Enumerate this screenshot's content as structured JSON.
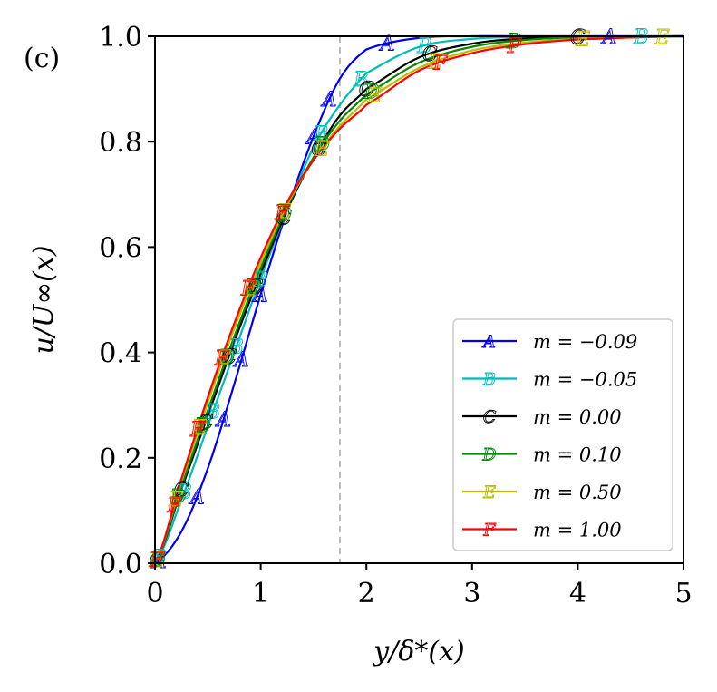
{
  "panel_label": "(c)",
  "chart_data": {
    "type": "line",
    "title": "",
    "xlabel": "y/δ*(x)",
    "ylabel": "u/U∞(x)",
    "xlim": [
      0,
      5
    ],
    "ylim": [
      0,
      1
    ],
    "xticks": [
      0,
      1,
      2,
      3,
      4,
      5
    ],
    "yticks": [
      0.0,
      0.2,
      0.4,
      0.6,
      0.8,
      1.0
    ],
    "xtick_labels": [
      "0",
      "1",
      "2",
      "3",
      "4",
      "5"
    ],
    "ytick_labels": [
      "0.0",
      "0.2",
      "0.4",
      "0.6",
      "0.8",
      "1.0"
    ],
    "grid": false,
    "legend_position": "lower-right",
    "reference_line": {
      "orientation": "vertical",
      "x": 1.75,
      "style": "dashed",
      "color": "#bbbbbb"
    },
    "series": [
      {
        "name": "m = −0.09",
        "marker": "A",
        "color": "#0000ee",
        "x": [
          0,
          0.25,
          0.5,
          0.75,
          1.0,
          1.25,
          1.5,
          1.75,
          2.0,
          2.5,
          3.0,
          3.5,
          4.0,
          5.0
        ],
        "y": [
          0,
          0.06,
          0.18,
          0.34,
          0.51,
          0.67,
          0.81,
          0.92,
          0.975,
          0.997,
          1.0,
          1.0,
          1.0,
          1.0
        ],
        "marker_x": [
          0.04,
          0.4,
          0.65,
          0.82,
          1.0,
          1.5,
          1.65,
          2.2,
          4.3
        ]
      },
      {
        "name": "m = −0.05",
        "marker": "B",
        "color": "#00bbbb",
        "x": [
          0,
          0.25,
          0.5,
          0.75,
          1.0,
          1.25,
          1.5,
          1.75,
          2.0,
          2.5,
          3.0,
          3.5,
          4.0,
          5.0
        ],
        "y": [
          0,
          0.12,
          0.26,
          0.4,
          0.54,
          0.67,
          0.79,
          0.87,
          0.93,
          0.98,
          0.995,
          0.999,
          1.0,
          1.0
        ],
        "marker_x": [
          0.04,
          0.28,
          0.55,
          0.77,
          1.0,
          1.57,
          1.95,
          2.55,
          4.6
        ]
      },
      {
        "name": "m = 0.00",
        "marker": "C",
        "color": "#000000",
        "x": [
          0,
          0.25,
          0.5,
          0.75,
          1.0,
          1.25,
          1.5,
          1.75,
          2.0,
          2.5,
          3.0,
          3.5,
          4.0,
          5.0
        ],
        "y": [
          0,
          0.14,
          0.28,
          0.42,
          0.55,
          0.67,
          0.77,
          0.85,
          0.9,
          0.96,
          0.986,
          0.996,
          0.999,
          1.0
        ],
        "marker_x": [
          0.02,
          0.25,
          0.48,
          0.7,
          0.95,
          1.22,
          1.55,
          2.0,
          2.6,
          4.0
        ]
      },
      {
        "name": "m = 0.10",
        "marker": "D",
        "color": "#008800",
        "x": [
          0,
          0.25,
          0.5,
          0.75,
          1.0,
          1.25,
          1.5,
          1.75,
          2.0,
          2.5,
          3.0,
          3.5,
          4.0,
          5.0
        ],
        "y": [
          0,
          0.145,
          0.29,
          0.43,
          0.56,
          0.675,
          0.77,
          0.84,
          0.89,
          0.95,
          0.98,
          0.993,
          0.998,
          1.0
        ],
        "marker_x": [
          0.02,
          0.22,
          0.45,
          0.68,
          0.93,
          1.22,
          1.58,
          2.05,
          3.4
        ]
      },
      {
        "name": "m = 0.50",
        "marker": "E",
        "color": "#bbbb00",
        "x": [
          0,
          0.25,
          0.5,
          0.75,
          1.0,
          1.25,
          1.5,
          1.75,
          2.0,
          2.5,
          3.0,
          3.5,
          4.0,
          5.0
        ],
        "y": [
          0,
          0.155,
          0.305,
          0.445,
          0.57,
          0.68,
          0.765,
          0.83,
          0.88,
          0.94,
          0.973,
          0.988,
          0.995,
          1.0
        ],
        "marker_x": [
          0.02,
          0.2,
          0.42,
          0.65,
          0.9,
          1.22,
          1.58,
          2.08,
          2.65,
          4.05,
          4.8
        ]
      },
      {
        "name": "m = 1.00",
        "marker": "F",
        "color": "#ff0000",
        "x": [
          0,
          0.25,
          0.5,
          0.75,
          1.0,
          1.25,
          1.5,
          1.75,
          2.0,
          2.5,
          3.0,
          3.5,
          4.0,
          5.0
        ],
        "y": [
          0,
          0.16,
          0.315,
          0.455,
          0.58,
          0.685,
          0.765,
          0.825,
          0.87,
          0.935,
          0.968,
          0.985,
          0.994,
          1.0
        ],
        "marker_x": [
          0.02,
          0.18,
          0.4,
          0.63,
          0.88,
          1.2,
          2.7,
          3.4
        ]
      }
    ]
  }
}
